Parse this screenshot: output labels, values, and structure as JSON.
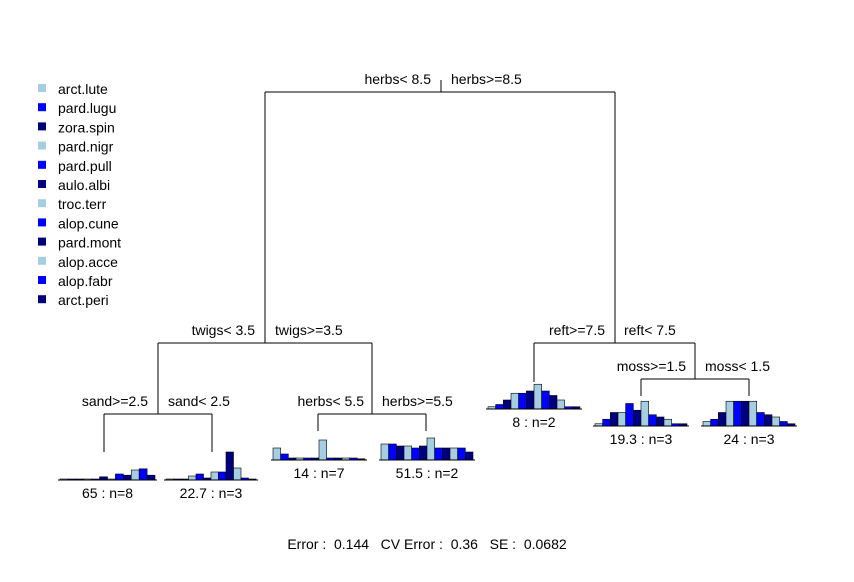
{
  "legend": [
    {
      "label": "arct.lute",
      "color": "#a6cee3"
    },
    {
      "label": "pard.lugu",
      "color": "#0000ff"
    },
    {
      "label": "zora.spin",
      "color": "#00007f"
    },
    {
      "label": "pard.nigr",
      "color": "#a6cee3"
    },
    {
      "label": "pard.pull",
      "color": "#0000ff"
    },
    {
      "label": "aulo.albi",
      "color": "#00007f"
    },
    {
      "label": "troc.terr",
      "color": "#a6cee3"
    },
    {
      "label": "alop.cune",
      "color": "#0000ff"
    },
    {
      "label": "pard.mont",
      "color": "#00007f"
    },
    {
      "label": "alop.acce",
      "color": "#a6cee3"
    },
    {
      "label": "alop.fabr",
      "color": "#0000ff"
    },
    {
      "label": "arct.peri",
      "color": "#00007f"
    }
  ],
  "splits": {
    "root_left": "herbs< 8.5",
    "root_right": "herbs>=8.5",
    "l_left": "twigs< 3.5",
    "l_right": "twigs>=3.5",
    "ll_left": "sand>=2.5",
    "ll_right": "sand< 2.5",
    "lr_left": "herbs< 5.5",
    "lr_right": "herbs>=5.5",
    "r_left": "reft>=7.5",
    "r_right": "reft< 7.5",
    "rr_left": "moss>=1.5",
    "rr_right": "moss< 1.5"
  },
  "leaves": [
    {
      "label": "65 : n=8",
      "values": [
        0.02,
        0.02,
        0.02,
        0.02,
        0.02,
        0.08,
        0.02,
        0.15,
        0.12,
        0.25,
        0.28,
        0.12
      ]
    },
    {
      "label": "22.7 : n=3",
      "values": [
        0.02,
        0.02,
        0.02,
        0.1,
        0.15,
        0.05,
        0.2,
        0.2,
        0.7,
        0.3,
        0.05,
        0.02
      ]
    },
    {
      "label": "14 : n=7",
      "values": [
        0.3,
        0.15,
        0.05,
        0.05,
        0.05,
        0.05,
        0.5,
        0.05,
        0.05,
        0.05,
        0.05,
        0.03
      ]
    },
    {
      "label": "51.5 : n=2",
      "values": [
        0.4,
        0.4,
        0.35,
        0.35,
        0.3,
        0.35,
        0.55,
        0.3,
        0.3,
        0.3,
        0.3,
        0.2
      ]
    },
    {
      "label": "8 : n=2",
      "values": [
        0.05,
        0.1,
        0.2,
        0.35,
        0.35,
        0.4,
        0.55,
        0.4,
        0.3,
        0.2,
        0.05,
        0.05
      ]
    },
    {
      "label": "19.3 : n=3",
      "values": [
        0.05,
        0.15,
        0.3,
        0.3,
        0.5,
        0.35,
        0.55,
        0.25,
        0.2,
        0.15,
        0.05,
        0.05
      ]
    },
    {
      "label": "24 : n=3",
      "values": [
        0.1,
        0.15,
        0.3,
        0.55,
        0.55,
        0.55,
        0.55,
        0.3,
        0.25,
        0.2,
        0.1,
        0.05
      ]
    }
  ],
  "footer": "Error :  0.144   CV Error :  0.36   SE :  0.0682"
}
